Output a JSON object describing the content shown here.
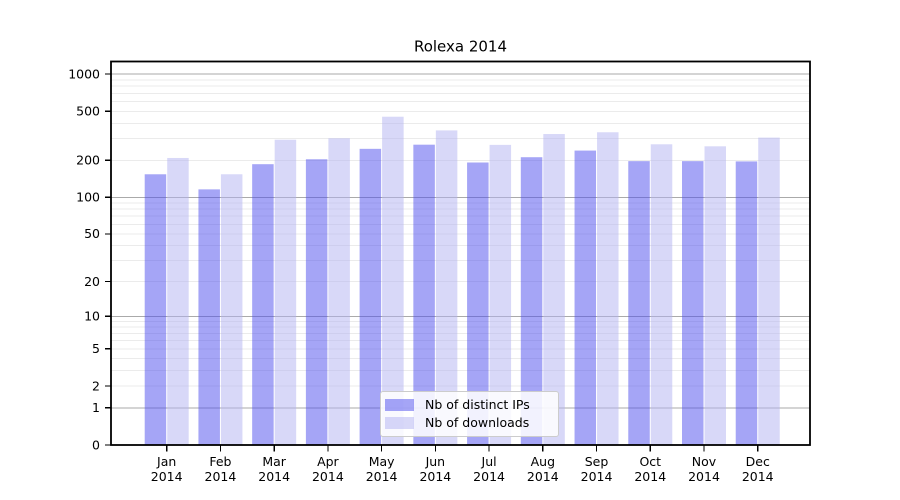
{
  "title": "Rolexa 2014",
  "legend": {
    "items": [
      {
        "label": "Nb of distinct IPs",
        "color": "#a5a5f6",
        "fill": "rgba(76,76,238,0.5)"
      },
      {
        "label": "Nb of downloads",
        "color": "#d8d8f8",
        "fill": "rgba(178,178,242,0.5)"
      }
    ]
  },
  "chart_data": {
    "type": "bar",
    "title": "Rolexa 2014",
    "categories": [
      "Jan 2014",
      "Feb 2014",
      "Mar 2014",
      "Apr 2014",
      "May 2014",
      "Jun 2014",
      "Jul 2014",
      "Aug 2014",
      "Sep 2014",
      "Oct 2014",
      "Nov 2014",
      "Dec 2014"
    ],
    "x_tick_labels_line1": [
      "Jan",
      "Feb",
      "Mar",
      "Apr",
      "May",
      "Jun",
      "Jul",
      "Aug",
      "Sep",
      "Oct",
      "Nov",
      "Dec"
    ],
    "x_tick_labels_line2": "2014",
    "series": [
      {
        "name": "Nb of distinct IPs",
        "color": "#a5a5f6",
        "fill": "rgba(76,76,238,0.5)",
        "values": [
          154,
          116,
          186,
          204,
          248,
          268,
          192,
          212,
          240,
          197,
          197,
          196
        ]
      },
      {
        "name": "Nb of downloads",
        "color": "#d8d8f8",
        "fill": "rgba(178,178,242,0.5)",
        "values": [
          209,
          154,
          294,
          302,
          452,
          350,
          267,
          327,
          338,
          270,
          260,
          306
        ]
      }
    ],
    "yscale": "log1p",
    "yticks": [
      0,
      1,
      2,
      5,
      10,
      20,
      50,
      100,
      200,
      500,
      1000
    ],
    "ylim": [
      0,
      1250
    ],
    "xlabel": "",
    "ylabel": "",
    "grid": "horizontal major+minor",
    "major_grid_at": [
      1,
      10,
      100,
      1000
    ],
    "legend_position": "lower center inside plot",
    "axis_color": "#000000",
    "major_grid_color": "#aaaaaa",
    "minor_grid_color": "#ebebeb"
  }
}
